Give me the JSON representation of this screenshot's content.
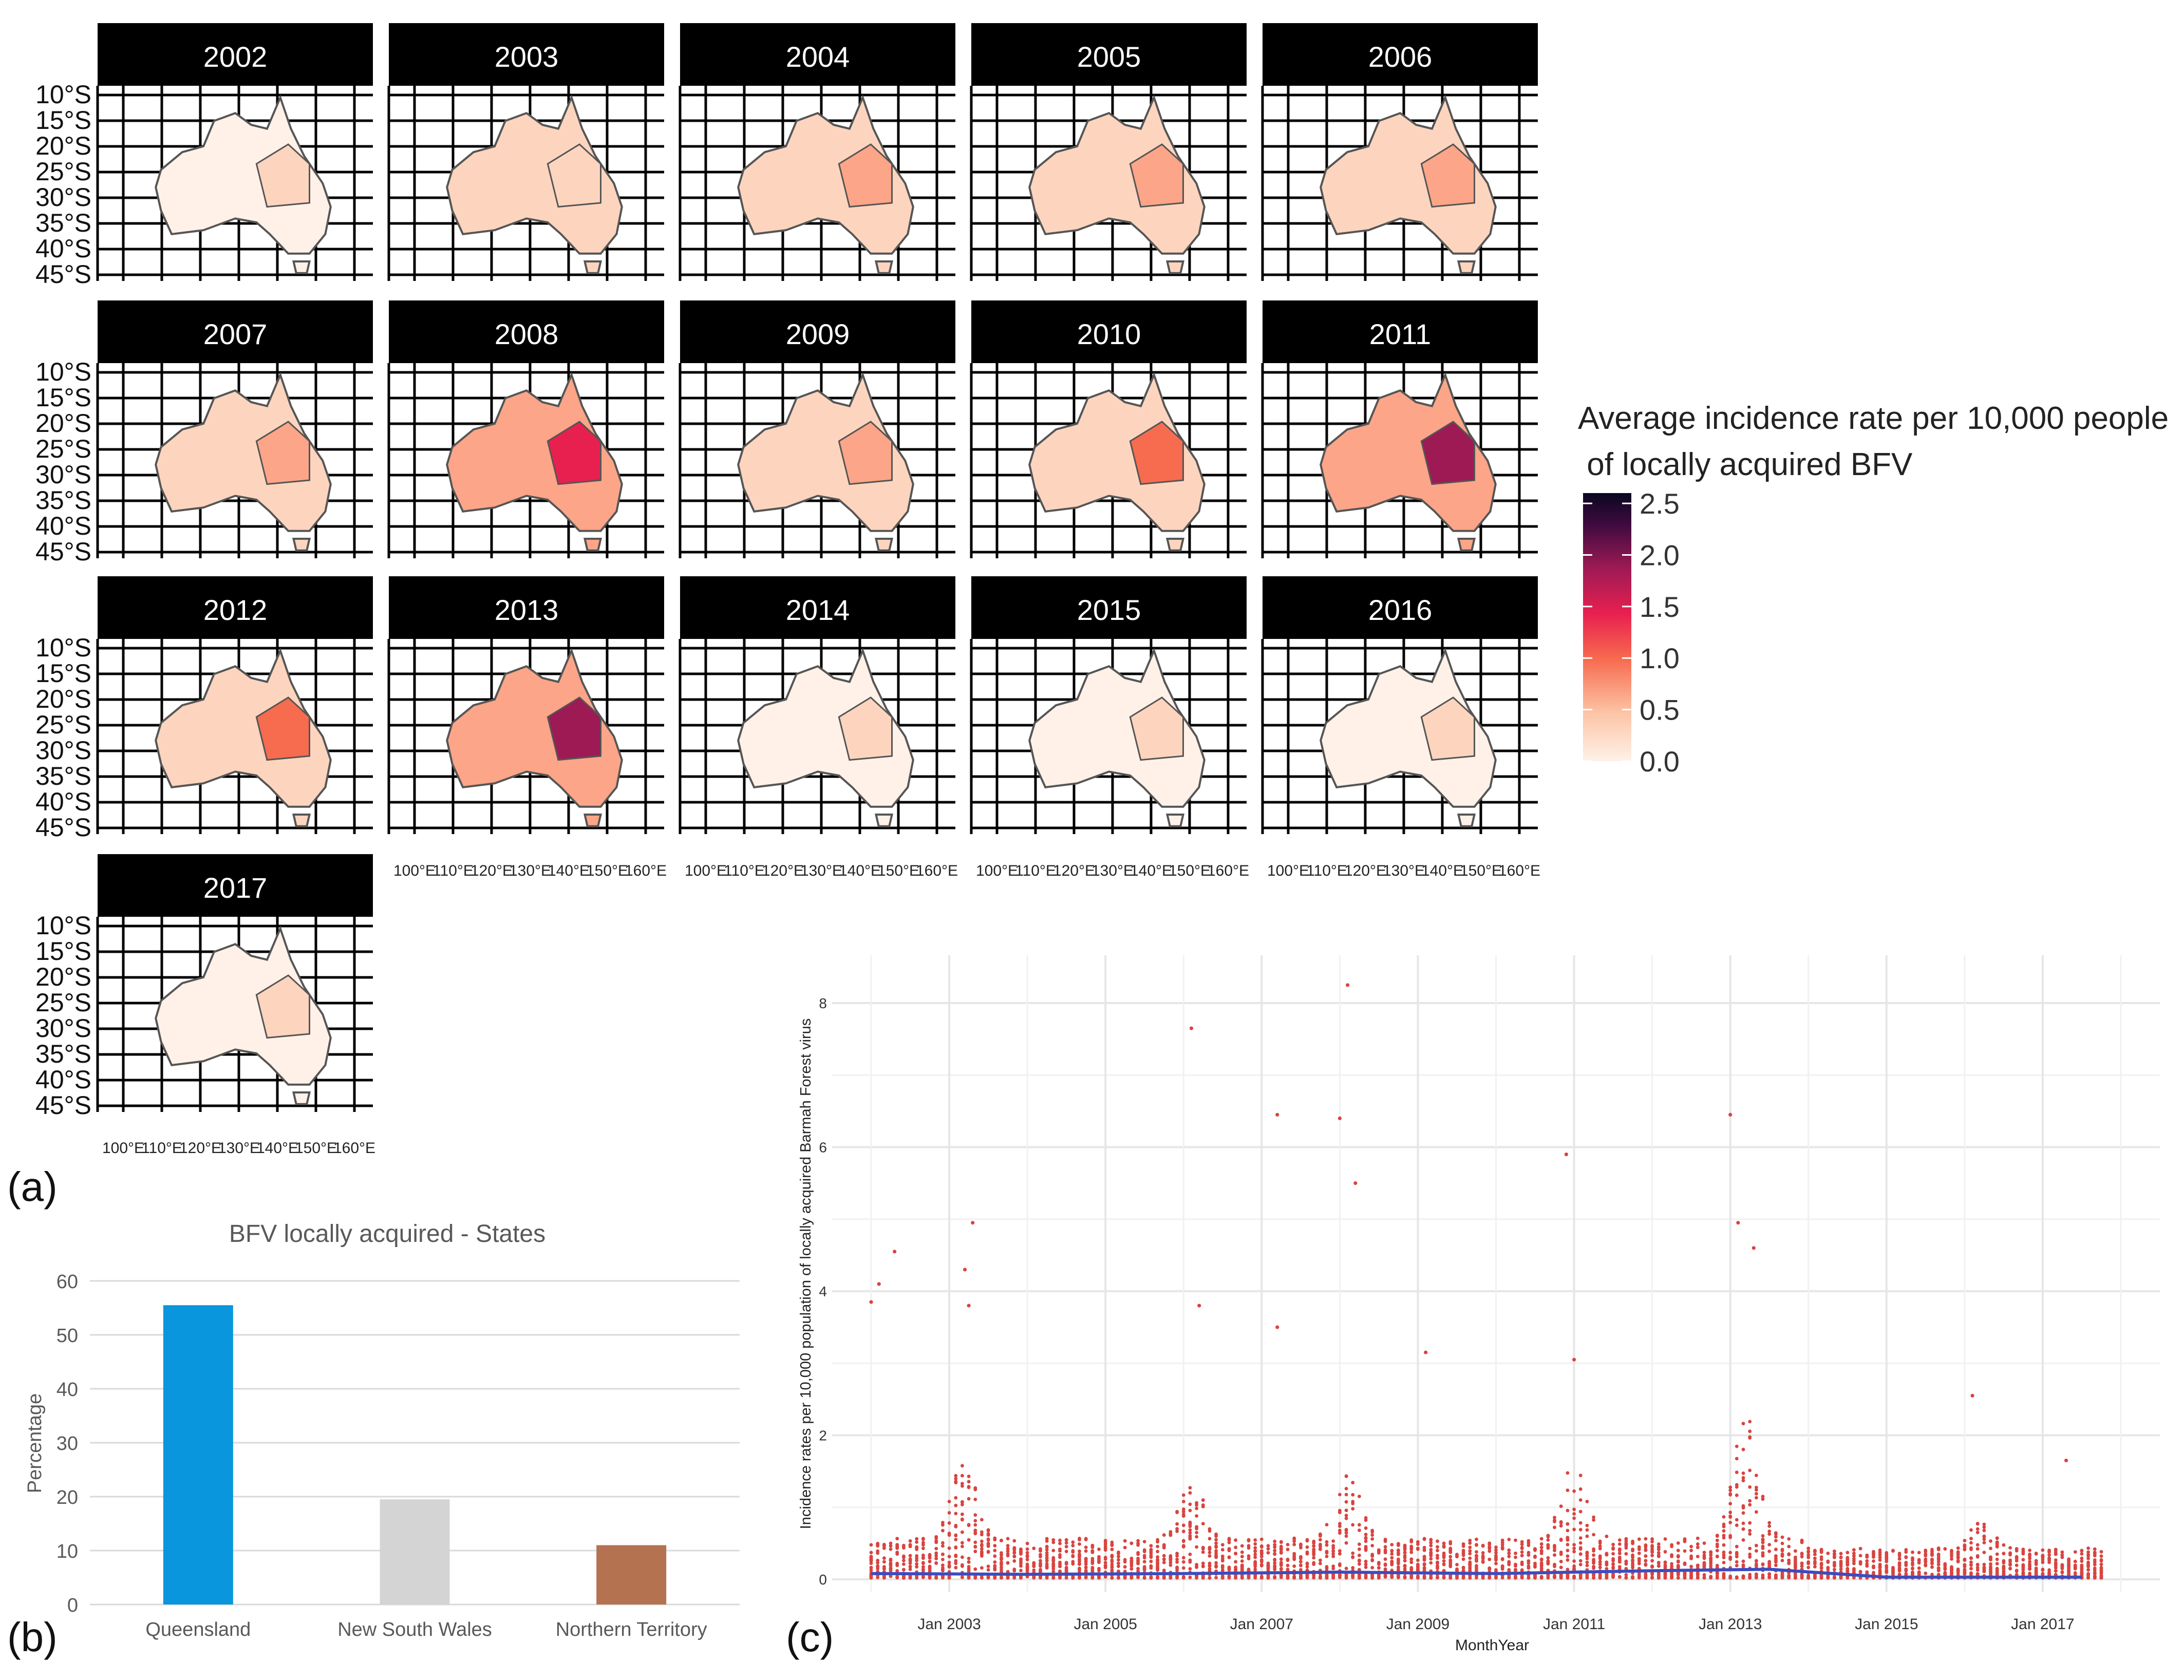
{
  "panel_labels": {
    "a": "(a)",
    "b": "(b)",
    "c": "(c)"
  },
  "chart_data": [
    {
      "id": "a",
      "type": "heatmap",
      "title": "",
      "facets": [
        {
          "year": "2002",
          "intensity": 0.18
        },
        {
          "year": "2003",
          "intensity": 0.25
        },
        {
          "year": "2004",
          "intensity": 0.3
        },
        {
          "year": "2005",
          "intensity": 0.38
        },
        {
          "year": "2006",
          "intensity": 0.48
        },
        {
          "year": "2007",
          "intensity": 0.35
        },
        {
          "year": "2008",
          "intensity": 0.8
        },
        {
          "year": "2009",
          "intensity": 0.42
        },
        {
          "year": "2010",
          "intensity": 0.62
        },
        {
          "year": "2011",
          "intensity": 1.05
        },
        {
          "year": "2012",
          "intensity": 0.55
        },
        {
          "year": "2013",
          "intensity": 0.95
        },
        {
          "year": "2014",
          "intensity": 0.22
        },
        {
          "year": "2015",
          "intensity": 0.2
        },
        {
          "year": "2016",
          "intensity": 0.15
        },
        {
          "year": "2017",
          "intensity": 0.12
        }
      ],
      "lat_ticks": [
        "10°S",
        "15°S",
        "20°S",
        "25°S",
        "30°S",
        "35°S",
        "40°S",
        "45°S"
      ],
      "lon_ticks": [
        "100°E",
        "110°E",
        "120°E",
        "130°E",
        "140°E",
        "150°E",
        "160°E"
      ],
      "legend": {
        "title_line1": "Average incidence rate per 10,000 people",
        "title_line2": " of locally acquired BFV",
        "ticks": [
          "2.5",
          "2.0",
          "1.5",
          "1.0",
          "0.5",
          "0.0"
        ],
        "range": [
          0,
          2.6
        ],
        "placement": "right"
      },
      "colors": [
        "#fff1e8",
        "#fdd5bf",
        "#fca588",
        "#f76b4f",
        "#e8204f",
        "#9d1a55",
        "#3f0b3f",
        "#0b0722"
      ]
    },
    {
      "id": "b",
      "type": "bar",
      "title": "BFV locally acquired - States",
      "ylabel": "Percentage",
      "xlabel": "",
      "ylim": [
        0,
        60
      ],
      "yticks": [
        "0",
        "10",
        "20",
        "30",
        "40",
        "50",
        "60"
      ],
      "categories": [
        "Queensland",
        "New South Wales",
        "Northern Territory"
      ],
      "values": [
        55.5,
        19.5,
        11
      ],
      "colors": [
        "#0a96dc",
        "#d4d4d4",
        "#b57251"
      ]
    },
    {
      "id": "c",
      "type": "scatter",
      "title": "",
      "xlabel": "MonthYear",
      "ylabel": "Incidence rates per 10,000 population of locally acquired Barmah Forest virus",
      "ylim": [
        0,
        8.5
      ],
      "yticks": [
        "0",
        "2",
        "4",
        "6",
        "8"
      ],
      "xlim": [
        2001.5,
        2018.5
      ],
      "xticks": [
        "Jan 2003",
        "Jan 2005",
        "Jan 2007",
        "Jan 2009",
        "Jan 2011",
        "Jan 2013",
        "Jan 2015",
        "Jan 2017"
      ],
      "xtick_values": [
        2003,
        2005,
        2007,
        2009,
        2011,
        2013,
        2015,
        2017
      ],
      "point_color": "#d9443f",
      "trend_color": "#3b4cc0",
      "outliers": [
        {
          "x": 2002.0,
          "y": 3.85
        },
        {
          "x": 2002.1,
          "y": 4.1
        },
        {
          "x": 2002.3,
          "y": 4.55
        },
        {
          "x": 2003.2,
          "y": 4.3
        },
        {
          "x": 2003.3,
          "y": 4.95
        },
        {
          "x": 2003.25,
          "y": 3.8
        },
        {
          "x": 2006.1,
          "y": 7.65
        },
        {
          "x": 2007.2,
          "y": 6.45
        },
        {
          "x": 2008.0,
          "y": 6.4
        },
        {
          "x": 2008.1,
          "y": 8.25
        },
        {
          "x": 2008.2,
          "y": 5.5
        },
        {
          "x": 2010.9,
          "y": 5.9
        },
        {
          "x": 2013.0,
          "y": 6.45
        },
        {
          "x": 2013.1,
          "y": 4.95
        },
        {
          "x": 2013.3,
          "y": 4.6
        },
        {
          "x": 2006.2,
          "y": 3.8
        },
        {
          "x": 2007.2,
          "y": 3.5
        },
        {
          "x": 2009.1,
          "y": 3.15
        },
        {
          "x": 2011.0,
          "y": 3.05
        },
        {
          "x": 2016.1,
          "y": 2.55
        },
        {
          "x": 2017.3,
          "y": 1.65
        }
      ],
      "trend": [
        {
          "x": 2002.0,
          "y": 0.08
        },
        {
          "x": 2004.0,
          "y": 0.07
        },
        {
          "x": 2006.0,
          "y": 0.08
        },
        {
          "x": 2008.0,
          "y": 0.1
        },
        {
          "x": 2010.0,
          "y": 0.08
        },
        {
          "x": 2012.0,
          "y": 0.12
        },
        {
          "x": 2013.5,
          "y": 0.14
        },
        {
          "x": 2015.0,
          "y": 0.03
        },
        {
          "x": 2017.5,
          "y": 0.03
        }
      ]
    }
  ]
}
